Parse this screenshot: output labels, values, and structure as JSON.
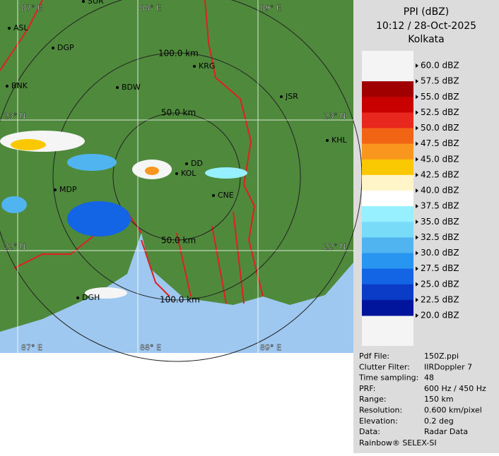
{
  "title": "PPI (dBZ)",
  "time": "10:12 / 28-Oct-2025",
  "site": "Kolkata",
  "scale": {
    "labels": [
      "60.0 dBZ",
      "57.5 dBZ",
      "55.0 dBZ",
      "52.5 dBZ",
      "50.0 dBZ",
      "47.5 dBZ",
      "45.0 dBZ",
      "42.5 dBZ",
      "40.0 dBZ",
      "37.5 dBZ",
      "35.0 dBZ",
      "32.5 dBZ",
      "30.0 dBZ",
      "27.5 dBZ",
      "25.0 dBZ",
      "22.5 dBZ",
      "20.0 dBZ"
    ],
    "colors": [
      "#a00000",
      "#c80000",
      "#e8281e",
      "#f06414",
      "#f8961e",
      "#fac800",
      "#fff5c8",
      "#ffffff",
      "#96f0ff",
      "#78dcf8",
      "#50b4f0",
      "#2896f0",
      "#1464e6",
      "#0a3cc8",
      "#00149c"
    ]
  },
  "map": {
    "lon_top": [
      "87° E",
      "88° E",
      "89° E"
    ],
    "lon_bottom": [
      "87° E",
      "88° E",
      "89° E"
    ],
    "lat_left": [
      "23° N",
      "22° N"
    ],
    "lat_right": [
      "23° N",
      "22° N"
    ],
    "ranges": [
      "100.0 km",
      "50.0 km",
      "50.0 km",
      "100.0 km"
    ],
    "cities": [
      "SUR",
      "ASL",
      "DGP",
      "BNK",
      "BDW",
      "KRG",
      "JSR",
      "KHL",
      "MDP",
      "DD",
      "KOL",
      "CNE",
      "DGH"
    ]
  },
  "info": {
    "rows": [
      [
        "Pdf File:",
        "150Z.ppi"
      ],
      [
        "Clutter Filter:",
        "IIRDoppler 7"
      ],
      [
        "Time sampling:",
        "48"
      ],
      [
        "PRF:",
        "600 Hz / 450 Hz"
      ],
      [
        "Range:",
        "150 km"
      ],
      [
        "Resolution:",
        "0.600 km/pixel"
      ],
      [
        "Elevation:",
        "0.2 deg"
      ],
      [
        "Data:",
        "Radar Data"
      ]
    ],
    "footer": "Rainbow® SELEX-SI"
  }
}
